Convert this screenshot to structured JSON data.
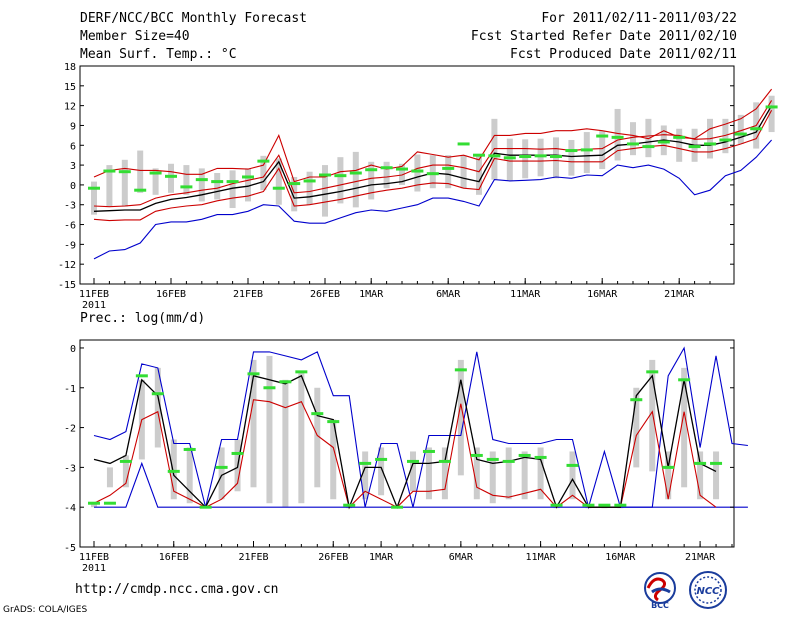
{
  "header": {
    "title": "DERF/NCC/BCC Monthly Forecast",
    "member_size": "Member Size=40",
    "variable": "Mean Surf. Temp.: °C",
    "period": "For 2011/02/11-2011/03/22",
    "fcst_start": "Fcst Started Refer Date 2011/02/10",
    "fcst_produced": "Fcst Produced Date 2011/02/11"
  },
  "footer": {
    "url": "http://cmdp.ncc.cma.gov.cn",
    "grads": "GrADS: COLA/IGES",
    "logo_bcc": "BCC",
    "logo_ncc": "NCC"
  },
  "colors": {
    "max": "#0000cc",
    "min": "#cc0000",
    "mean": "#000000",
    "control": "#33dd33",
    "spread": "#cccccc"
  },
  "chart_data": [
    {
      "type": "line",
      "title": "Mean Surf. Temp.: °C",
      "ylim": [
        -15,
        18
      ],
      "yticks": [
        -15,
        -12,
        -9,
        -6,
        -3,
        0,
        3,
        6,
        9,
        12,
        15,
        18
      ],
      "ytick_labels": [
        "-15",
        "-12",
        "-9",
        "-6",
        "-3",
        "0",
        "3",
        "6",
        "9",
        "12",
        "15",
        "18"
      ],
      "x_days": 40,
      "xticks": [
        0,
        5,
        10,
        15,
        18,
        23,
        28,
        33,
        38
      ],
      "xtick_labels": [
        "11FEB",
        "16FEB",
        "21FEB",
        "26FEB",
        "1MAR",
        "6MAR",
        "11MAR",
        "16MAR",
        "21MAR"
      ],
      "first_year_label": "2011",
      "series": [
        {
          "name": "max",
          "values": [
            -11.2,
            -10,
            -9.8,
            -8.8,
            -6,
            -5.6,
            -5.6,
            -5.2,
            -4.5,
            -4.5,
            -4,
            -3,
            -3.2,
            -5.5,
            -5.8,
            -5.8,
            -5,
            -4.2,
            -3.8,
            -4,
            -3.5,
            -3,
            -2,
            -2,
            -2.5,
            -3.2,
            0.8,
            0.6,
            0.7,
            0.8,
            1.2,
            1,
            1.5,
            1.4,
            3,
            2.6,
            3,
            2.4,
            1,
            -1.5,
            -0.8,
            1.4,
            2.2,
            4.2,
            6.8
          ]
        },
        {
          "name": "min",
          "values": [
            1.2,
            2.2,
            2.5,
            2.2,
            2.2,
            2,
            1.6,
            1.6,
            2.5,
            2.5,
            2.4,
            3,
            7.5,
            0.5,
            1.2,
            1.2,
            2,
            2.2,
            3,
            2.4,
            2.8,
            5,
            4.6,
            4.2,
            4.5,
            3.8,
            7.5,
            7.5,
            7.8,
            7.8,
            8.2,
            8.2,
            8.5,
            8.2,
            7.8,
            7.5,
            7,
            8.2,
            7.2,
            7,
            8.5,
            9.2,
            10,
            11.5,
            14.5
          ]
        },
        {
          "name": "mean_upper",
          "values": [
            -5.2,
            -5.4,
            -5.3,
            -5.3,
            -4,
            -3.5,
            -3.2,
            -3,
            -2.4,
            -2,
            -1.7,
            -1,
            2.5,
            -3.2,
            -3,
            -2.6,
            -2.2,
            -1.7,
            -1.2,
            -0.8,
            -0.5,
            0,
            0.3,
            0.2,
            -0.5,
            -0.7,
            4,
            3.6,
            3.6,
            3.6,
            3.7,
            3.5,
            3.5,
            3.5,
            5.2,
            5.5,
            5.8,
            6,
            5.5,
            5,
            5,
            5.5,
            6.2,
            7,
            11.3
          ]
        },
        {
          "name": "mean",
          "values": [
            -4,
            -3.9,
            -3.8,
            -3.8,
            -2.8,
            -2.2,
            -1.9,
            -1.5,
            -1,
            -0.5,
            -0.2,
            0.5,
            3.5,
            -2,
            -1.8,
            -1.4,
            -1,
            -0.5,
            0,
            0.2,
            0.5,
            1.2,
            1.8,
            1.6,
            1,
            0.5,
            4.8,
            4.5,
            4.5,
            4.5,
            4.5,
            4.3,
            4.4,
            4.5,
            6,
            6.2,
            6.5,
            6.8,
            6.5,
            6,
            6,
            6.5,
            7.2,
            8,
            12
          ]
        },
        {
          "name": "mean_lower",
          "values": [
            -3.2,
            -3.3,
            -3.2,
            -3,
            -2,
            -1.5,
            -1.2,
            -0.8,
            -0.5,
            0.2,
            0.7,
            1.2,
            4.5,
            -1.2,
            -1,
            -0.5,
            0,
            0.5,
            1,
            1.2,
            1.5,
            2.5,
            3,
            3,
            2.6,
            2,
            5.5,
            5.5,
            5.5,
            5.4,
            5.5,
            5.2,
            5.4,
            5.5,
            6.8,
            7.2,
            7.4,
            7.6,
            7.5,
            6.9,
            7,
            7.5,
            8.2,
            9,
            12.8
          ]
        },
        {
          "name": "control",
          "values": [
            -0.5,
            2.1,
            2,
            -0.8,
            1.8,
            1.3,
            -0.3,
            0.8,
            0.5,
            0.5,
            1.2,
            3.6,
            -0.5,
            0.2,
            0.6,
            1.5,
            1.4,
            1.8,
            2.3,
            2.6,
            2.4,
            2.1,
            1.7,
            2.5,
            6.2,
            4.5,
            4.4,
            4.1,
            4.3,
            4.4,
            4.3,
            5.2,
            5.3,
            7.4,
            7.2,
            6.2,
            5.8,
            6.5,
            7.2,
            5.8,
            6.2,
            6.8,
            7.7,
            8.5,
            11.8
          ]
        },
        {
          "name": "spread_top",
          "values": [
            0.5,
            3,
            3.8,
            5.2,
            2.5,
            3.2,
            3,
            2.5,
            1.8,
            2.2,
            2.5,
            4.4,
            4,
            1.2,
            2,
            3,
            4.2,
            5,
            3.5,
            3.5,
            3.2,
            4.6,
            4.5,
            4.5,
            4.5,
            4.5,
            10,
            7,
            6.9,
            7,
            7.2,
            6.8,
            8,
            8.2,
            11.5,
            9.5,
            10,
            9,
            8.5,
            8.5,
            10,
            10,
            10.6,
            12.5,
            13.5
          ]
        },
        {
          "name": "spread_bottom",
          "values": [
            -4.5,
            -3.2,
            -3.3,
            -1.2,
            -1.5,
            -1.2,
            -1.5,
            -2.5,
            -2.2,
            -3.5,
            -2.5,
            -0.8,
            -3,
            -4,
            -3,
            -4.8,
            -2.8,
            -3.4,
            -2.2,
            -0.5,
            0,
            -1,
            -0.5,
            -0.5,
            -0.5,
            -1.5,
            0.8,
            0.6,
            1,
            1.3,
            1,
            1.4,
            1.8,
            2.4,
            3.7,
            4.5,
            4.2,
            4.5,
            3.5,
            3.5,
            4,
            4.8,
            6.2,
            5.5,
            8
          ]
        }
      ]
    },
    {
      "type": "line",
      "title": "Prec.: log(mm/d)",
      "ylim": [
        -5,
        0.2
      ],
      "yticks": [
        -5,
        -4,
        -3,
        -2,
        -1,
        0
      ],
      "ytick_labels": [
        "-5",
        "-4",
        "-3",
        "-2",
        "-1",
        "0"
      ],
      "x_days": 40,
      "xticks": [
        0,
        5,
        10,
        15,
        18,
        23,
        28,
        33,
        38
      ],
      "xtick_labels": [
        "11FEB",
        "16FEB",
        "21FEB",
        "26FEB",
        "1MAR",
        "6MAR",
        "11MAR",
        "16MAR",
        "21MAR"
      ],
      "first_year_label": "2011",
      "series": [
        {
          "name": "max",
          "values": [
            -2.2,
            -2.3,
            -2.1,
            -0.4,
            -0.5,
            -2.4,
            -2.4,
            -4,
            -2.3,
            -2.3,
            -0.1,
            -0.1,
            -0.2,
            -0.3,
            -0.1,
            -1.2,
            -1.2,
            -4,
            -2.4,
            -2.4,
            -4,
            -2.2,
            -2.2,
            -2.2,
            -0.1,
            -2.3,
            -2.4,
            -2.4,
            -2.4,
            -2.3,
            -2.3,
            -4,
            -2.6,
            -4,
            -4,
            -4,
            -0.7,
            0,
            -2.5,
            -0.2,
            -2.4,
            -2.45
          ]
        },
        {
          "name": "mean",
          "values": [
            -2.8,
            -2.9,
            -2.7,
            -0.8,
            -1.2,
            -3.2,
            -3.6,
            -4,
            -3.2,
            -3,
            -0.7,
            -0.8,
            -0.9,
            -0.7,
            -1.7,
            -1.8,
            -4,
            -3,
            -3,
            -4,
            -2.9,
            -2.9,
            -2.85,
            -0.8,
            -2.8,
            -2.9,
            -2.85,
            -2.75,
            -2.8,
            -4,
            -3.3,
            -4,
            -4,
            -4,
            -1.2,
            -0.7,
            -3,
            -0.8,
            -2.9,
            -3.1
          ]
        },
        {
          "name": "min",
          "values": [
            -3.9,
            -3.7,
            -3.4,
            -1.8,
            -1.6,
            -3.6,
            -3.8,
            -4,
            -3.8,
            -3.4,
            -1.3,
            -1.35,
            -1.5,
            -1.35,
            -2.2,
            -2.5,
            -4,
            -3.6,
            -3.8,
            -4,
            -3.6,
            -3.6,
            -3.55,
            -1.4,
            -3.5,
            -3.7,
            -3.75,
            -3.65,
            -3.55,
            -4,
            -3.7,
            -4,
            -4,
            -4,
            -2.2,
            -1.6,
            -3.8,
            -1.6,
            -3.7,
            -4
          ]
        },
        {
          "name": "min_floor",
          "values": [
            -4,
            -4,
            -4,
            -2.9,
            -4,
            -4,
            -4,
            -4,
            -4,
            -4,
            -4,
            -4,
            -4,
            -4,
            -4,
            -4,
            -4,
            -4,
            -4,
            -4,
            -4,
            -4,
            -4,
            -4,
            -4,
            -4,
            -4,
            -4,
            -4,
            -4,
            -4,
            -4,
            -4,
            -4,
            -4,
            -4,
            -4,
            -4,
            -4,
            -4,
            -4,
            -4
          ]
        },
        {
          "name": "control",
          "values": [
            -3.9,
            -3.9,
            -2.85,
            -0.7,
            -1.15,
            -3.1,
            -2.55,
            -4,
            -3,
            -2.65,
            -0.65,
            -1,
            -0.85,
            -0.6,
            -1.65,
            -1.85,
            -3.95,
            -2.9,
            -2.8,
            -4,
            -2.85,
            -2.6,
            -2.85,
            -0.55,
            -2.7,
            -2.8,
            -2.85,
            -2.7,
            -2.75,
            -3.95,
            -2.95,
            -3.95,
            -3.95,
            -3.95,
            -1.3,
            -0.6,
            -3,
            -0.8,
            -2.9,
            -2.9
          ]
        },
        {
          "name": "spread_top",
          "values": [
            -4,
            -3,
            -2.7,
            -0.8,
            -0.5,
            -2.3,
            -2.5,
            -4,
            -2.5,
            -2.3,
            -0.3,
            -0.2,
            -0.8,
            -0.6,
            -1,
            -1.8,
            -4,
            -2.6,
            -2.5,
            -4,
            -2.6,
            -2.5,
            -2.5,
            -0.3,
            -2.5,
            -2.6,
            -2.5,
            -2.6,
            -2.5,
            -4,
            -2.6,
            -4,
            -4,
            -4,
            -1,
            -0.3,
            -2.6,
            -0.5,
            -2.6,
            -2.6
          ]
        },
        {
          "name": "spread_bottom",
          "values": [
            -3.9,
            -3.5,
            -3.5,
            -2.8,
            -2.5,
            -3.8,
            -3.9,
            -4,
            -3.8,
            -3.6,
            -3.5,
            -3.9,
            -4,
            -3.9,
            -3.5,
            -3.8,
            -4,
            -3.8,
            -3.7,
            -4,
            -3.6,
            -3.8,
            -3.8,
            -3.2,
            -3.8,
            -3.9,
            -3.8,
            -3.8,
            -3.8,
            -4,
            -3.8,
            -4,
            -4,
            -4,
            -3,
            -3.1,
            -3.8,
            -3.5,
            -3.8,
            -3.8
          ]
        }
      ]
    }
  ]
}
